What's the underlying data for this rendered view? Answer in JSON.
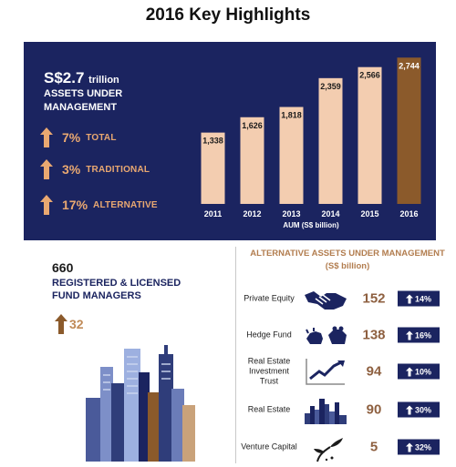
{
  "title": "2016 Key Highlights",
  "aum": {
    "value": "S$2.7",
    "unit": "trillion",
    "label": "ASSETS UNDER MANAGEMENT",
    "growth": [
      {
        "pct": "7%",
        "label": "TOTAL"
      },
      {
        "pct": "3%",
        "label": "TRADITIONAL"
      },
      {
        "pct": "17%",
        "label": "ALTERNATIVE"
      }
    ]
  },
  "chart_data": {
    "type": "bar",
    "categories": [
      "2011",
      "2012",
      "2013",
      "2014",
      "2015",
      "2016"
    ],
    "values": [
      1338,
      1626,
      1818,
      2359,
      2566,
      2744
    ],
    "value_labels": [
      "1,338",
      "1,626",
      "1,818",
      "2,359",
      "2,566",
      "2,744"
    ],
    "xlabel": "AUM (S$ billion)",
    "ylabel": "",
    "ylim": [
      0,
      2800
    ],
    "grid": false,
    "colors": {
      "bar": "#f3cdb0",
      "highlight": "#8b5a2b",
      "background": "#1b2460"
    }
  },
  "fund_managers": {
    "count": "660",
    "label": "REGISTERED & LICENSED FUND MANAGERS",
    "growth": "32"
  },
  "alternative_assets": {
    "title": "ALTERNATIVE ASSETS UNDER MANAGEMENT",
    "subtitle": "(S$ billion)",
    "rows": [
      {
        "name": "Private Equity",
        "value": "152",
        "growth": "14%",
        "icon": "handshake-icon"
      },
      {
        "name": "Hedge Fund",
        "value": "138",
        "growth": "16%",
        "icon": "bull-bear-icon"
      },
      {
        "name": "Real Estate Investment Trust",
        "value": "94",
        "growth": "10%",
        "icon": "trend-chart-icon"
      },
      {
        "name": "Real Estate",
        "value": "90",
        "growth": "30%",
        "icon": "skyline-icon"
      },
      {
        "name": "Venture Capital",
        "value": "5",
        "growth": "32%",
        "icon": "sprout-icon"
      }
    ]
  },
  "colors": {
    "navy": "#1b2460",
    "accent": "#e9a871",
    "bar": "#f3cdb0",
    "bar_highlight": "#8b5a2b",
    "value_brown": "#8e6040"
  }
}
